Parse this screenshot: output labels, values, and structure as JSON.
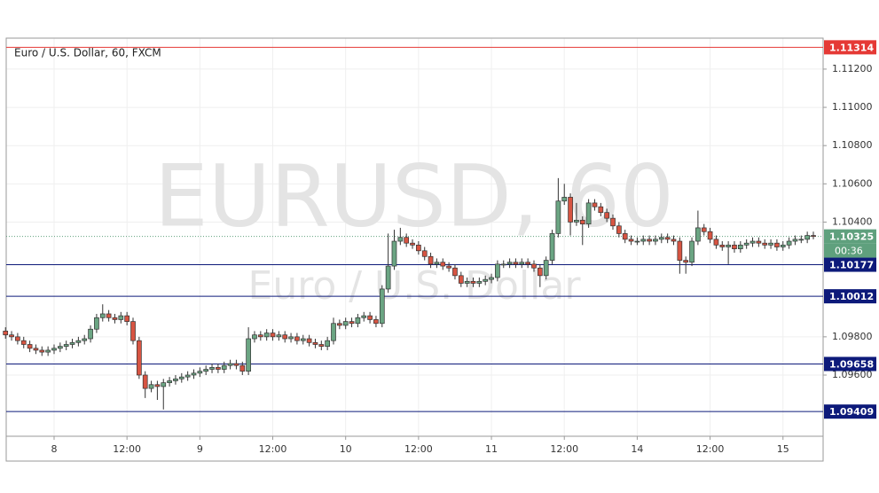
{
  "chart_data": {
    "type": "candlestick",
    "title": "Euro / U.S. Dollar, 60, FXCM",
    "watermark": "EURUSD, 60",
    "watermark_subtitle": "Euro / U.S. Dollar",
    "categories": [
      null,
      null,
      null,
      null,
      null,
      null,
      null,
      null,
      "8",
      null,
      null,
      null,
      null,
      null,
      null,
      null,
      null,
      null,
      null,
      null,
      "12:00",
      null,
      null,
      null,
      null,
      null,
      null,
      null,
      null,
      null,
      null,
      null,
      "9",
      null,
      null,
      null,
      null,
      null,
      null,
      null,
      null,
      null,
      null,
      null,
      "12:00",
      null,
      null,
      null,
      null,
      null,
      null,
      null,
      null,
      null,
      null,
      null,
      "10",
      null,
      null,
      null,
      null,
      null,
      null,
      null,
      null,
      null,
      null,
      null,
      "12:00",
      null,
      null,
      null,
      null,
      null,
      null,
      null,
      null,
      null,
      null,
      null,
      "11",
      null,
      null,
      null,
      null,
      null,
      null,
      null,
      null,
      null,
      null,
      null,
      "12:00",
      null,
      null,
      null,
      null,
      null,
      null,
      null,
      null,
      null,
      null,
      null,
      "14",
      null,
      null,
      null,
      null,
      null,
      null,
      null,
      null,
      null,
      null,
      null,
      "12:00",
      null,
      null,
      null,
      null,
      null,
      null,
      null,
      null,
      null,
      null,
      null,
      "15",
      null,
      null,
      null,
      null,
      null
    ],
    "open": [
      1.0983,
      1.0981,
      1.098,
      1.0978,
      1.0976,
      1.0974,
      1.0973,
      1.0972,
      1.0973,
      1.0974,
      1.0975,
      1.0976,
      1.0977,
      1.0978,
      1.0979,
      1.0984,
      1.099,
      1.0992,
      1.099,
      1.0989,
      1.0991,
      1.0988,
      1.0978,
      1.096,
      1.0953,
      1.0955,
      1.0954,
      1.0956,
      1.0957,
      1.0958,
      1.0959,
      1.096,
      1.0961,
      1.0962,
      1.0963,
      1.0964,
      1.0963,
      1.0965,
      1.0966,
      1.0965,
      1.0962,
      1.0979,
      1.0981,
      1.098,
      1.0982,
      1.098,
      1.0981,
      1.0979,
      1.098,
      1.0978,
      1.0979,
      1.0977,
      1.0976,
      1.0975,
      1.0978,
      1.0987,
      1.0986,
      1.0988,
      1.0987,
      1.099,
      1.0991,
      1.0989,
      1.0987,
      1.1005,
      1.1017,
      1.103,
      1.1032,
      1.1029,
      1.1028,
      1.1025,
      1.1022,
      1.1018,
      1.1019,
      1.1017,
      1.1016,
      1.1012,
      1.1008,
      1.1009,
      1.1008,
      1.1009,
      1.101,
      1.1011,
      1.1018,
      1.1018,
      1.1019,
      1.1018,
      1.1019,
      1.1018,
      1.1016,
      1.1012,
      1.102,
      1.1034,
      1.1051,
      1.1053,
      1.104,
      1.1041,
      1.1039,
      1.105,
      1.1048,
      1.1045,
      1.1042,
      1.1038,
      1.1034,
      1.1031,
      1.103,
      1.103,
      1.1031,
      1.103,
      1.1031,
      1.1032,
      1.1031,
      1.103,
      1.102,
      1.1019,
      1.103,
      1.1037,
      1.1035,
      1.1031,
      1.1028,
      1.1027,
      1.1028,
      1.1026,
      1.1028,
      1.1029,
      1.103,
      1.1029,
      1.1028,
      1.1029,
      1.1027,
      1.1028,
      1.103,
      1.1031,
      1.1031,
      1.1033
    ],
    "high": [
      1.0985,
      1.0983,
      1.0982,
      1.098,
      1.0978,
      1.0976,
      1.0975,
      1.0975,
      1.0976,
      1.0977,
      1.0978,
      1.0979,
      1.098,
      1.0981,
      1.0986,
      1.0992,
      1.0997,
      1.0994,
      1.0992,
      1.0993,
      1.0993,
      1.099,
      1.098,
      1.0962,
      1.0957,
      1.0957,
      1.0958,
      1.0959,
      1.096,
      1.0961,
      1.0962,
      1.0963,
      1.0964,
      1.0965,
      1.0966,
      1.0966,
      1.0967,
      1.0968,
      1.0968,
      1.0967,
      1.0985,
      1.0983,
      1.0983,
      1.0984,
      1.0984,
      1.0983,
      1.0983,
      1.0982,
      1.0982,
      1.0981,
      1.0981,
      1.0979,
      1.0978,
      1.098,
      1.099,
      1.0989,
      1.099,
      1.099,
      1.0992,
      1.0993,
      1.0993,
      1.0991,
      1.1007,
      1.1034,
      1.1036,
      1.1037,
      1.1034,
      1.1031,
      1.103,
      1.1027,
      1.1024,
      1.1021,
      1.1021,
      1.1019,
      1.1018,
      1.1014,
      1.1011,
      1.1011,
      1.1011,
      1.1012,
      1.1013,
      1.102,
      1.102,
      1.1021,
      1.1021,
      1.1021,
      1.1021,
      1.102,
      1.1018,
      1.1022,
      1.1036,
      1.1063,
      1.106,
      1.1055,
      1.105,
      1.1043,
      1.1052,
      1.1052,
      1.105,
      1.1047,
      1.1044,
      1.104,
      1.1036,
      1.1033,
      1.1032,
      1.1033,
      1.1033,
      1.1033,
      1.1034,
      1.1034,
      1.1033,
      1.1032,
      1.1022,
      1.1032,
      1.1046,
      1.1039,
      1.1037,
      1.1033,
      1.103,
      1.103,
      1.103,
      1.103,
      1.1031,
      1.1032,
      1.1032,
      1.1031,
      1.1031,
      1.1031,
      1.103,
      1.1032,
      1.1033,
      1.1033,
      1.1035,
      1.1035
    ],
    "low": [
      1.0979,
      1.0978,
      1.0976,
      1.0974,
      1.0972,
      1.0971,
      1.097,
      1.097,
      1.0971,
      1.0972,
      1.0973,
      1.0974,
      1.0975,
      1.0976,
      1.0977,
      1.0982,
      1.0988,
      1.0988,
      1.0987,
      1.0987,
      1.0986,
      1.0976,
      1.0958,
      1.0948,
      1.0951,
      1.0947,
      1.0942,
      1.0954,
      1.0955,
      1.0956,
      1.0957,
      1.0958,
      1.0959,
      1.096,
      1.0961,
      1.0961,
      1.0961,
      1.0963,
      1.0963,
      1.096,
      1.096,
      1.0977,
      1.0978,
      1.0978,
      1.0978,
      1.0978,
      1.0977,
      1.0977,
      1.0976,
      1.0976,
      1.0975,
      1.0974,
      1.0973,
      1.0973,
      1.0976,
      1.0984,
      1.0984,
      1.0985,
      1.0985,
      1.0988,
      1.0987,
      1.0985,
      1.0985,
      1.1003,
      1.1015,
      1.1028,
      1.1027,
      1.1026,
      1.1023,
      1.102,
      1.1016,
      1.1016,
      1.1015,
      1.1014,
      1.101,
      1.1006,
      1.1006,
      1.1006,
      1.1006,
      1.1007,
      1.1008,
      1.1009,
      1.1016,
      1.1016,
      1.1016,
      1.1016,
      1.1016,
      1.1014,
      1.1006,
      1.101,
      1.1018,
      1.1032,
      1.1049,
      1.1033,
      1.1038,
      1.1028,
      1.1037,
      1.1046,
      1.1043,
      1.104,
      1.1036,
      1.1032,
      1.1029,
      1.1028,
      1.1028,
      1.1028,
      1.1028,
      1.1028,
      1.1029,
      1.1029,
      1.1028,
      1.1013,
      1.1013,
      1.1017,
      1.1028,
      1.1033,
      1.1029,
      1.1026,
      1.1025,
      1.1018,
      1.1024,
      1.1024,
      1.1026,
      1.1027,
      1.1027,
      1.1026,
      1.1026,
      1.1025,
      1.1025,
      1.1026,
      1.1028,
      1.1029,
      1.1029,
      1.1031
    ],
    "close": [
      1.0981,
      1.098,
      1.0978,
      1.0976,
      1.0974,
      1.0973,
      1.0972,
      1.0973,
      1.0974,
      1.0975,
      1.0976,
      1.0977,
      1.0978,
      1.0979,
      1.0984,
      1.099,
      1.0992,
      1.099,
      1.0989,
      1.0991,
      1.0988,
      1.0978,
      1.096,
      1.0953,
      1.0955,
      1.0954,
      1.0956,
      1.0957,
      1.0958,
      1.0959,
      1.096,
      1.0961,
      1.0962,
      1.0963,
      1.0964,
      1.0963,
      1.0965,
      1.0966,
      1.0965,
      1.0962,
      1.0979,
      1.0981,
      1.098,
      1.0982,
      1.098,
      1.0981,
      1.0979,
      1.098,
      1.0978,
      1.0979,
      1.0977,
      1.0976,
      1.0975,
      1.0978,
      1.0987,
      1.0986,
      1.0988,
      1.0987,
      1.099,
      1.0991,
      1.0989,
      1.0987,
      1.1005,
      1.1017,
      1.103,
      1.1032,
      1.1029,
      1.1028,
      1.1025,
      1.1022,
      1.1018,
      1.1019,
      1.1017,
      1.1016,
      1.1012,
      1.1008,
      1.1009,
      1.1008,
      1.1009,
      1.101,
      1.1011,
      1.1018,
      1.1018,
      1.1019,
      1.1018,
      1.1019,
      1.1018,
      1.1016,
      1.1012,
      1.102,
      1.1034,
      1.1051,
      1.1053,
      1.104,
      1.1041,
      1.1039,
      1.105,
      1.1048,
      1.1045,
      1.1042,
      1.1038,
      1.1034,
      1.1031,
      1.103,
      1.103,
      1.1031,
      1.103,
      1.1031,
      1.1032,
      1.1031,
      1.103,
      1.102,
      1.1019,
      1.103,
      1.1037,
      1.1035,
      1.1031,
      1.1028,
      1.1027,
      1.1028,
      1.1026,
      1.1028,
      1.1029,
      1.103,
      1.1029,
      1.1028,
      1.1029,
      1.1027,
      1.1028,
      1.103,
      1.1031,
      1.1031,
      1.1033,
      1.10325
    ],
    "up_color": "#6ba583",
    "down_color": "#d75442",
    "ylim": [
      1.0928,
      1.11362
    ],
    "yticks": [
      {
        "value": 1.096,
        "label": "1.09600"
      },
      {
        "value": 1.098,
        "label": "1.09800"
      },
      {
        "value": 1.104,
        "label": "1.10400"
      },
      {
        "value": 1.106,
        "label": "1.10600"
      },
      {
        "value": 1.108,
        "label": "1.10800"
      },
      {
        "value": 1.11,
        "label": "1.11000"
      },
      {
        "value": 1.112,
        "label": "1.11200"
      }
    ],
    "grid": true,
    "levels": [
      {
        "value": 1.11314,
        "color": "#e53935"
      },
      {
        "value": 1.10325,
        "color": "#5fa07d",
        "style": "dotted",
        "countdown": "00:36"
      },
      {
        "value": 1.10177,
        "color": "#0d1a7a"
      },
      {
        "value": 1.10012,
        "color": "#0d1a7a"
      },
      {
        "value": 1.09658,
        "color": "#0d1a7a"
      },
      {
        "value": 1.09409,
        "color": "#0d1a7a"
      }
    ]
  }
}
